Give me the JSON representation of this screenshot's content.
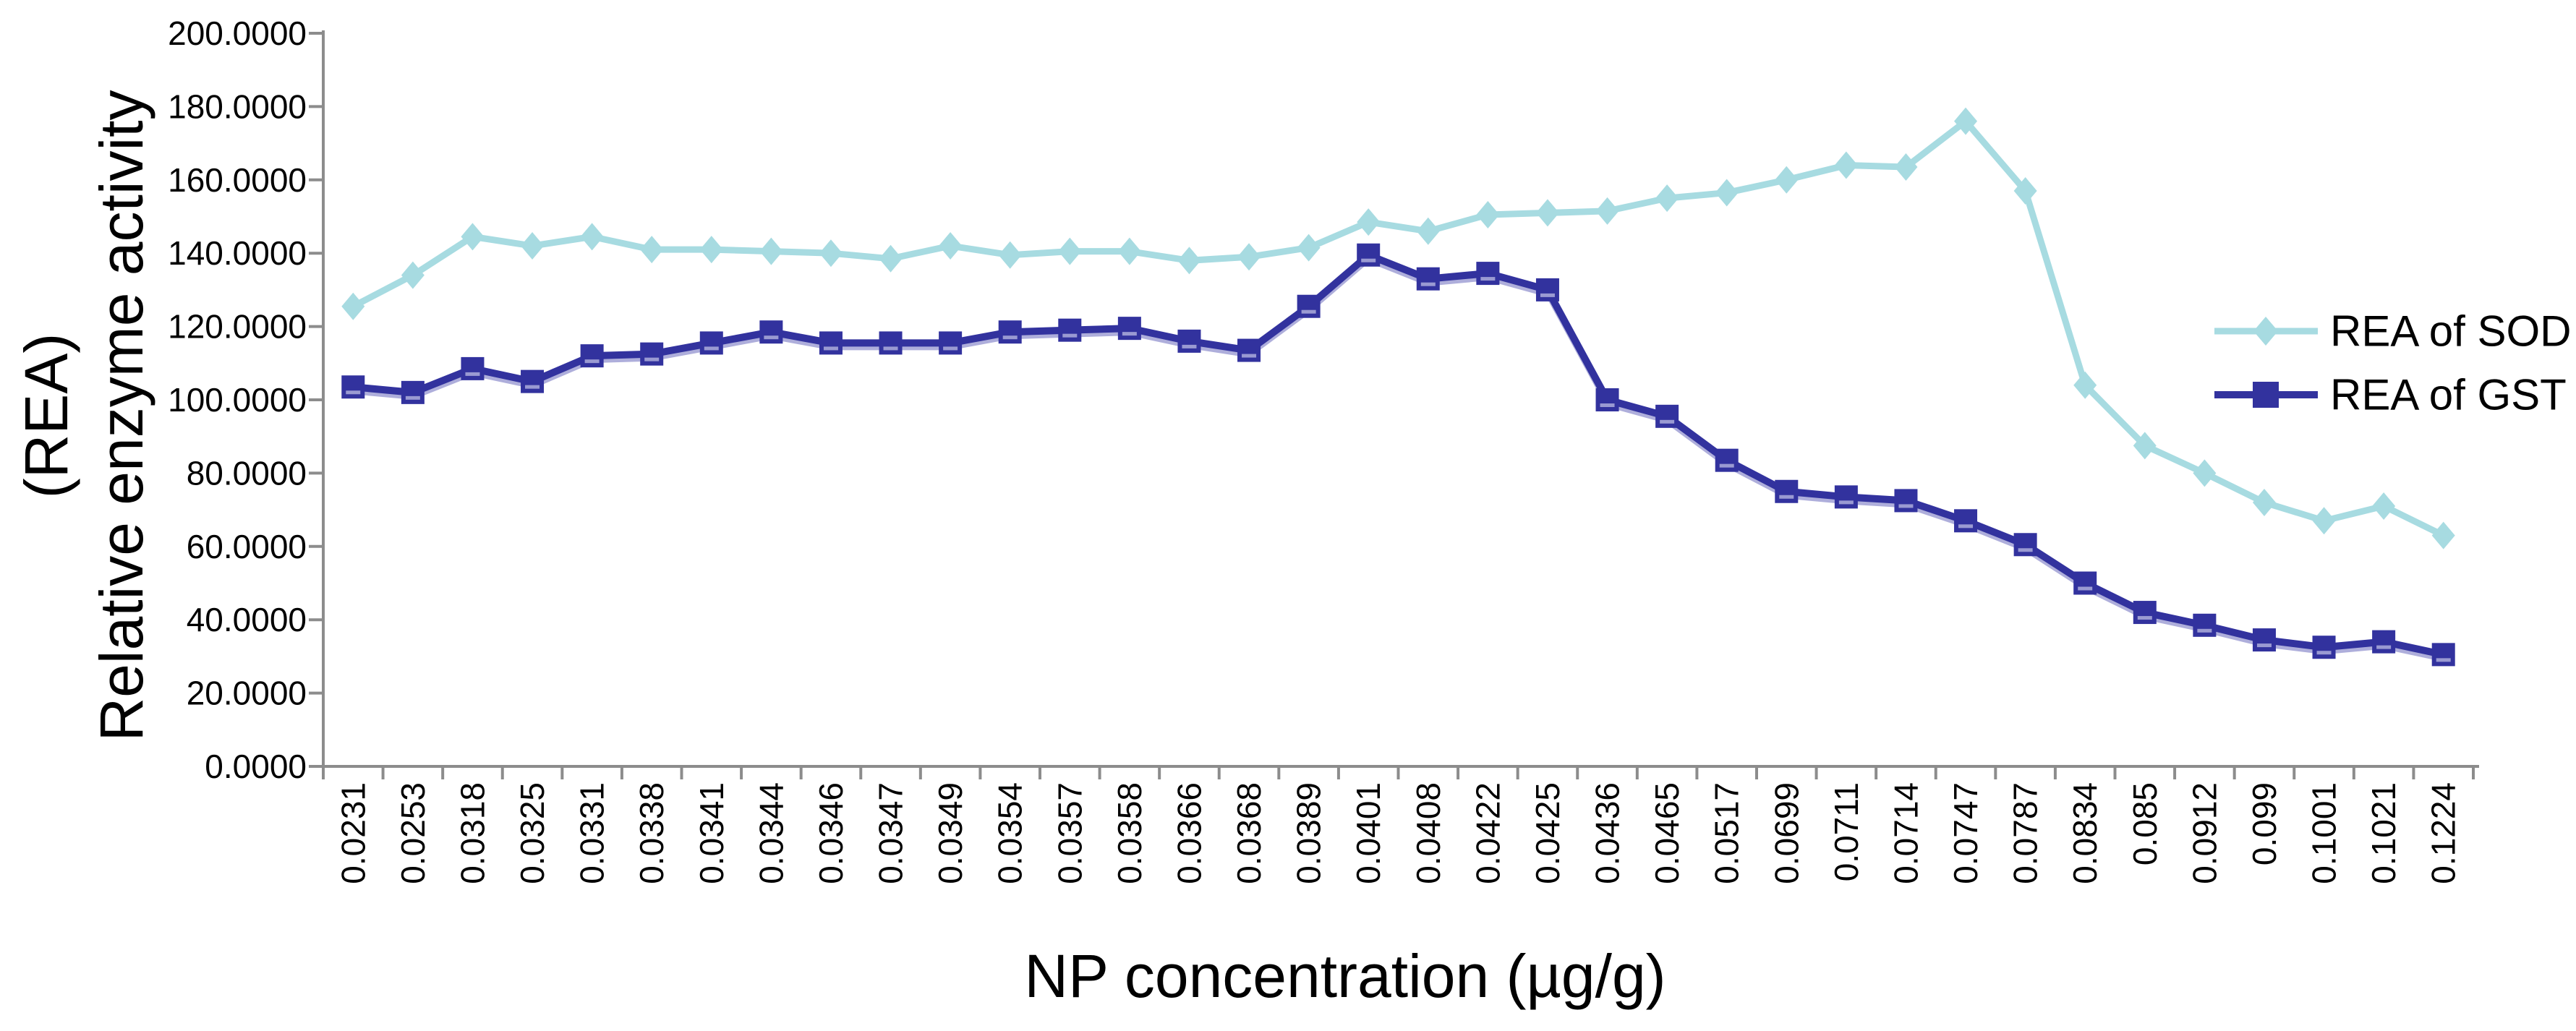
{
  "figure": {
    "xlabel": "NP concentration (µg/g)",
    "ylabel_line1": "Relative enzyme activity",
    "ylabel_line2": "(REA)"
  },
  "axis": {
    "y_tick_labels": [
      "0.0000",
      "20.0000",
      "40.0000",
      "60.0000",
      "80.0000",
      "100.0000",
      "120.0000",
      "140.0000",
      "160.0000",
      "180.0000",
      "200.0000"
    ],
    "axis_color": "#8c8c8c"
  },
  "chart_data": {
    "type": "line",
    "title": "",
    "xlabel": "NP concentration (µg/g)",
    "ylabel": "Relative enzyme activity (REA)",
    "ylim": [
      0,
      200
    ],
    "ytick_step": 20,
    "grid": false,
    "legend_position": "right",
    "categories": [
      "0.0231",
      "0.0253",
      "0.0318",
      "0.0325",
      "0.0331",
      "0.0338",
      "0.0341",
      "0.0344",
      "0.0346",
      "0.0347",
      "0.0349",
      "0.0354",
      "0.0357",
      "0.0358",
      "0.0366",
      "0.0368",
      "0.0389",
      "0.0401",
      "0.0408",
      "0.0422",
      "0.0425",
      "0.0436",
      "0.0465",
      "0.0517",
      "0.0699",
      "0.0711",
      "0.0714",
      "0.0747",
      "0.0787",
      "0.0834",
      "0.085",
      "0.0912",
      "0.099",
      "0.1001",
      "0.1021",
      "0.1224"
    ],
    "series": [
      {
        "name": "REA of SOD",
        "color": "#a7dbe1",
        "marker": "diamond",
        "values": [
          125.5,
          134,
          144.5,
          142,
          144.5,
          141,
          141,
          140.5,
          140,
          138.5,
          142,
          139.5,
          140.5,
          140.5,
          138,
          139,
          141.5,
          148.5,
          146,
          150.5,
          151,
          151.5,
          155,
          156.5,
          160,
          164,
          163.5,
          176,
          157,
          104,
          87.5,
          80,
          72,
          67,
          71,
          63
        ]
      },
      {
        "name": "REA of GST",
        "color": "#32329e",
        "marker": "square",
        "values": [
          103.5,
          102,
          108.5,
          105,
          112,
          112.5,
          115.5,
          118.5,
          115.5,
          115.5,
          115.5,
          118.5,
          119,
          119.5,
          116,
          113.5,
          125.5,
          139.5,
          133,
          134.5,
          130,
          100,
          95.5,
          83.5,
          75,
          73.5,
          72.5,
          67,
          60.5,
          50,
          42,
          38.5,
          34.5,
          32.5,
          34,
          30.5
        ]
      }
    ]
  }
}
